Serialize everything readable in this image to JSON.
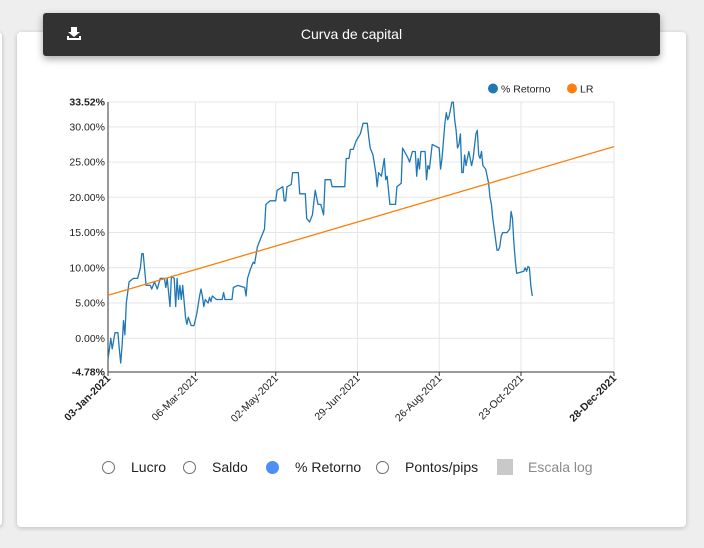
{
  "header": {
    "title": "Curva de capital",
    "download_icon": "download-icon"
  },
  "legend": [
    {
      "label": "% Retorno",
      "color": "#1f77b4"
    },
    {
      "label": "LR",
      "color": "#ff7f0e"
    }
  ],
  "controls": {
    "options": [
      {
        "label": "Lucro",
        "selected": false
      },
      {
        "label": "Saldo",
        "selected": false
      },
      {
        "label": "% Retorno",
        "selected": true
      },
      {
        "label": "Pontos/pips",
        "selected": false
      }
    ],
    "log_scale": {
      "label": "Escala log",
      "checked": false,
      "disabled": true
    }
  },
  "chart_data": {
    "type": "line",
    "ylim": [
      -4.78,
      33.52
    ],
    "y_ticks": [
      "-4.78%",
      "0.00%",
      "5.00%",
      "10.00%",
      "15.00%",
      "20.00%",
      "25.00%",
      "30.00%",
      "33.52%"
    ],
    "y_tick_values": [
      -4.78,
      0,
      5,
      10,
      15,
      20,
      25,
      30,
      33.52
    ],
    "y_tick_bold": [
      true,
      false,
      false,
      false,
      false,
      false,
      false,
      false,
      true
    ],
    "x_ticks": [
      "03-Jan-2021",
      "06-Mar-2021",
      "02-May-2021",
      "29-Jun-2021",
      "26-Aug-2021",
      "23-Oct-2021",
      "28-Dec-2021"
    ],
    "x_tick_dates": [
      "2021-01-03",
      "2021-03-06",
      "2021-05-02",
      "2021-06-29",
      "2021-08-26",
      "2021-10-23",
      "2021-12-28"
    ],
    "x_tick_bold": [
      true,
      false,
      false,
      false,
      false,
      false,
      true
    ],
    "grid": true,
    "legend_position": "top-right",
    "series": [
      {
        "name": "% Retorno",
        "color": "#1f77b4",
        "points": [
          [
            "2021-01-03",
            -3.0
          ],
          [
            "2021-01-05",
            0.0
          ],
          [
            "2021-01-06",
            -1.5
          ],
          [
            "2021-01-08",
            0.8
          ],
          [
            "2021-01-10",
            0.8
          ],
          [
            "2021-01-11",
            -1.5
          ],
          [
            "2021-01-12",
            -3.5
          ],
          [
            "2021-01-13",
            -1.0
          ],
          [
            "2021-01-14",
            2.5
          ],
          [
            "2021-01-15",
            0.5
          ],
          [
            "2021-01-16",
            5.0
          ],
          [
            "2021-01-18",
            8.0
          ],
          [
            "2021-01-21",
            8.5
          ],
          [
            "2021-01-24",
            8.5
          ],
          [
            "2021-01-26",
            10.0
          ],
          [
            "2021-01-27",
            12.0
          ],
          [
            "2021-01-28",
            12.0
          ],
          [
            "2021-01-30",
            7.5
          ],
          [
            "2021-02-02",
            7.5
          ],
          [
            "2021-02-03",
            7.0
          ],
          [
            "2021-02-05",
            8.0
          ],
          [
            "2021-02-07",
            7.0
          ],
          [
            "2021-02-09",
            8.5
          ],
          [
            "2021-02-12",
            8.5
          ],
          [
            "2021-02-13",
            7.2
          ],
          [
            "2021-02-14",
            8.5
          ],
          [
            "2021-02-16",
            4.5
          ],
          [
            "2021-02-17",
            8.8
          ],
          [
            "2021-02-19",
            8.5
          ],
          [
            "2021-02-20",
            4.5
          ],
          [
            "2021-02-21",
            8.5
          ],
          [
            "2021-02-22",
            5.5
          ],
          [
            "2021-02-23",
            7.5
          ],
          [
            "2021-02-24",
            5.5
          ],
          [
            "2021-02-25",
            7.5
          ],
          [
            "2021-02-27",
            3.0
          ],
          [
            "2021-02-28",
            2.0
          ],
          [
            "2021-03-01",
            3.0
          ],
          [
            "2021-03-03",
            1.8
          ],
          [
            "2021-03-05",
            1.8
          ],
          [
            "2021-03-07",
            3.5
          ],
          [
            "2021-03-09",
            6.0
          ],
          [
            "2021-03-10",
            7.0
          ],
          [
            "2021-03-11",
            6.0
          ],
          [
            "2021-03-12",
            4.5
          ],
          [
            "2021-03-13",
            5.5
          ],
          [
            "2021-03-15",
            5.0
          ],
          [
            "2021-03-16",
            5.8
          ],
          [
            "2021-03-17",
            5.2
          ],
          [
            "2021-03-18",
            6.0
          ],
          [
            "2021-03-21",
            5.5
          ],
          [
            "2021-03-25",
            5.5
          ],
          [
            "2021-03-26",
            6.5
          ],
          [
            "2021-03-27",
            5.5
          ],
          [
            "2021-04-01",
            5.5
          ],
          [
            "2021-04-02",
            7.2
          ],
          [
            "2021-04-05",
            7.5
          ],
          [
            "2021-04-10",
            7.2
          ],
          [
            "2021-04-11",
            6.0
          ],
          [
            "2021-04-12",
            8.5
          ],
          [
            "2021-04-14",
            9.8
          ],
          [
            "2021-04-16",
            10.8
          ],
          [
            "2021-04-17",
            10.6
          ],
          [
            "2021-04-19",
            13.0
          ],
          [
            "2021-04-21",
            14.0
          ],
          [
            "2021-04-24",
            15.5
          ],
          [
            "2021-04-25",
            19.0
          ],
          [
            "2021-04-28",
            19.5
          ],
          [
            "2021-05-02",
            19.5
          ],
          [
            "2021-05-03",
            21.0
          ],
          [
            "2021-05-07",
            21.5
          ],
          [
            "2021-05-08",
            19.5
          ],
          [
            "2021-05-09",
            19.5
          ],
          [
            "2021-05-10",
            21.5
          ],
          [
            "2021-05-13",
            21.8
          ],
          [
            "2021-05-14",
            23.5
          ],
          [
            "2021-05-18",
            23.5
          ],
          [
            "2021-05-19",
            20.5
          ],
          [
            "2021-05-21",
            20.5
          ],
          [
            "2021-05-23",
            20.5
          ],
          [
            "2021-05-24",
            17.0
          ],
          [
            "2021-05-26",
            16.5
          ],
          [
            "2021-05-28",
            17.5
          ],
          [
            "2021-05-30",
            21.0
          ],
          [
            "2021-06-01",
            19.0
          ],
          [
            "2021-06-03",
            19.0
          ],
          [
            "2021-06-05",
            17.5
          ],
          [
            "2021-06-06",
            22.5
          ],
          [
            "2021-06-10",
            22.5
          ],
          [
            "2021-06-11",
            21.5
          ],
          [
            "2021-06-20",
            21.5
          ],
          [
            "2021-06-21",
            25.5
          ],
          [
            "2021-06-23",
            25.5
          ],
          [
            "2021-06-24",
            26.8
          ],
          [
            "2021-06-26",
            26.8
          ],
          [
            "2021-06-28",
            28.0
          ],
          [
            "2021-07-01",
            29.0
          ],
          [
            "2021-07-03",
            30.5
          ],
          [
            "2021-07-06",
            30.5
          ],
          [
            "2021-07-07",
            28.5
          ],
          [
            "2021-07-08",
            27.0
          ],
          [
            "2021-07-10",
            26.0
          ],
          [
            "2021-07-12",
            23.5
          ],
          [
            "2021-07-13",
            21.5
          ],
          [
            "2021-07-14",
            23.5
          ],
          [
            "2021-07-16",
            23.0
          ],
          [
            "2021-07-18",
            25.5
          ],
          [
            "2021-07-19",
            22.5
          ],
          [
            "2021-07-20",
            23.0
          ],
          [
            "2021-07-21",
            21.0
          ],
          [
            "2021-07-22",
            19.0
          ],
          [
            "2021-07-26",
            19.0
          ],
          [
            "2021-07-27",
            21.5
          ],
          [
            "2021-07-30",
            22.0
          ],
          [
            "2021-07-31",
            27.0
          ],
          [
            "2021-08-04",
            25.5
          ],
          [
            "2021-08-05",
            25.0
          ],
          [
            "2021-08-07",
            26.5
          ],
          [
            "2021-08-09",
            26.5
          ],
          [
            "2021-08-10",
            23.0
          ],
          [
            "2021-08-11",
            25.5
          ],
          [
            "2021-08-12",
            24.0
          ],
          [
            "2021-08-13",
            26.5
          ],
          [
            "2021-08-16",
            26.5
          ],
          [
            "2021-08-17",
            22.5
          ],
          [
            "2021-08-18",
            24.5
          ],
          [
            "2021-08-19",
            24.0
          ],
          [
            "2021-08-21",
            27.5
          ],
          [
            "2021-08-26",
            27.0
          ],
          [
            "2021-08-27",
            24.0
          ],
          [
            "2021-08-28",
            25.5
          ],
          [
            "2021-08-30",
            30.5
          ],
          [
            "2021-08-31",
            32.0
          ],
          [
            "2021-09-01",
            31.0
          ],
          [
            "2021-09-02",
            31.5
          ],
          [
            "2021-09-04",
            33.5
          ],
          [
            "2021-09-05",
            33.5
          ],
          [
            "2021-09-06",
            31.0
          ],
          [
            "2021-09-07",
            29.5
          ],
          [
            "2021-09-08",
            27.0
          ],
          [
            "2021-09-09",
            27.5
          ],
          [
            "2021-09-10",
            29.0
          ],
          [
            "2021-09-11",
            23.5
          ],
          [
            "2021-09-12",
            23.5
          ],
          [
            "2021-09-13",
            26.0
          ],
          [
            "2021-09-14",
            24.5
          ],
          [
            "2021-09-15",
            25.5
          ],
          [
            "2021-09-16",
            26.5
          ],
          [
            "2021-09-18",
            24.5
          ],
          [
            "2021-09-19",
            25.5
          ],
          [
            "2021-09-21",
            29.0
          ],
          [
            "2021-09-22",
            29.5
          ],
          [
            "2021-09-23",
            26.0
          ],
          [
            "2021-09-24",
            25.5
          ],
          [
            "2021-09-25",
            26.5
          ],
          [
            "2021-09-26",
            24.5
          ],
          [
            "2021-09-28",
            24.0
          ],
          [
            "2021-09-30",
            22.0
          ],
          [
            "2021-10-01",
            20.0
          ],
          [
            "2021-10-02",
            19.0
          ],
          [
            "2021-10-03",
            17.0
          ],
          [
            "2021-10-04",
            15.5
          ],
          [
            "2021-10-05",
            14.0
          ],
          [
            "2021-10-06",
            12.5
          ],
          [
            "2021-10-07",
            12.5
          ],
          [
            "2021-10-08",
            13.0
          ],
          [
            "2021-10-09",
            14.5
          ],
          [
            "2021-10-10",
            15.0
          ],
          [
            "2021-10-13",
            15.0
          ],
          [
            "2021-10-15",
            15.5
          ],
          [
            "2021-10-16",
            18.0
          ],
          [
            "2021-10-17",
            17.0
          ],
          [
            "2021-10-18",
            13.5
          ],
          [
            "2021-10-19",
            11.0
          ],
          [
            "2021-10-20",
            9.2
          ],
          [
            "2021-10-25",
            9.5
          ],
          [
            "2021-10-26",
            10.0
          ],
          [
            "2021-10-27",
            9.5
          ],
          [
            "2021-10-28",
            10.2
          ],
          [
            "2021-10-29",
            10.0
          ],
          [
            "2021-10-30",
            7.5
          ],
          [
            "2021-10-31",
            6.0
          ]
        ]
      },
      {
        "name": "LR",
        "color": "#ff7f0e",
        "points": [
          [
            "2021-01-03",
            6.1
          ],
          [
            "2021-12-28",
            27.2
          ]
        ]
      }
    ]
  }
}
